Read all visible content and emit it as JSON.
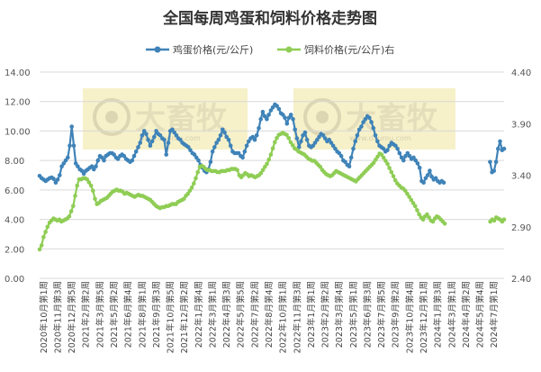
{
  "chart_data": {
    "type": "line",
    "title": "全国每周鸡蛋和饲料价格走势图",
    "left_axis": {
      "min": 0,
      "max": 14,
      "ticks": [
        "0.00",
        "2.00",
        "4.00",
        "6.00",
        "8.00",
        "10.00",
        "12.00",
        "14.00"
      ]
    },
    "right_axis": {
      "min": 2.4,
      "max": 4.4,
      "ticks": [
        "2.40",
        "2.90",
        "3.40",
        "3.90",
        "4.40"
      ]
    },
    "categories": [
      "2020年10月第1周",
      "2020年11月第3周",
      "2020年12月第5周",
      "2021年2月第2周",
      "2021年3月第5周",
      "2021年5月第2周",
      "2021年6月第4周",
      "2021年8月第1周",
      "2021年9月第3周",
      "2021年10月第5周",
      "2021年12月第2周",
      "2022年1月第4周",
      "2022年3月第1周",
      "2022年4月第3周",
      "2022年5月第5周",
      "2022年7月第2周",
      "2022年8月第4周",
      "2022年10月第1周",
      "2022年11月第3周",
      "2023年1月第1周",
      "2023年2月第2周",
      "2023年3月第4周",
      "2023年5月第1周",
      "2023年6月第3周",
      "2023年7月第5周",
      "2023年9月第2周",
      "2023年10月第4周",
      "2023年12月第1周",
      "2024年1月第3周",
      "2024年3月第1周",
      "2024年4月第2周",
      "2024年5月第4周",
      "2024年7月第1周"
    ],
    "series": [
      {
        "name": "鸡蛋价格(元/公斤)",
        "axis": "left",
        "color": "#3f83b8",
        "segments": [
          [
            6.95,
            6.8,
            6.7,
            6.6,
            6.7,
            6.8,
            6.85,
            6.75,
            6.5,
            6.7,
            7.0,
            7.6,
            7.8,
            8.0,
            8.2,
            9.0,
            10.3,
            9.0,
            7.8,
            7.6,
            7.4,
            7.3,
            7.1,
            7.3,
            7.4,
            7.5,
            7.6,
            7.4,
            7.6,
            8.0,
            8.3,
            8.2,
            8.0,
            8.3,
            8.4,
            8.5,
            8.5,
            8.4,
            8.2,
            8.1,
            8.3,
            8.4,
            8.3,
            8.1,
            8.0,
            7.9,
            8.0,
            8.3,
            8.6,
            8.9,
            9.2,
            9.7,
            10.0,
            9.8,
            9.4,
            9.0,
            9.3,
            9.6,
            10.0,
            9.8,
            9.7,
            9.5,
            9.4,
            8.4,
            9.2,
            10.0,
            10.1,
            9.9,
            9.7,
            9.5,
            9.4,
            9.2,
            9.1,
            9.0,
            8.9,
            8.7,
            8.5,
            8.4,
            8.2,
            8.0,
            7.7,
            7.5,
            7.3,
            7.2,
            7.4,
            7.9,
            8.6,
            8.9,
            9.2,
            9.4,
            9.7,
            10.1,
            9.9,
            9.6,
            9.4,
            9.0,
            8.6,
            8.5,
            8.5,
            8.5,
            8.3,
            8.2,
            8.6,
            9.0,
            9.3,
            9.5,
            9.6,
            9.4,
            9.7,
            10.2,
            10.8,
            11.3,
            11.0,
            10.8,
            11.1,
            11.4,
            11.6,
            11.8,
            11.7,
            11.5,
            11.2,
            11.1,
            10.9,
            10.5,
            10.9,
            11.1,
            10.8,
            10.1,
            9.5,
            8.9,
            9.3,
            9.7,
            9.9,
            9.4,
            9.0,
            8.9,
            9.0,
            9.2,
            9.4,
            9.6,
            9.8,
            9.7,
            9.5,
            9.3,
            9.4,
            9.2,
            9.0,
            8.8,
            8.6,
            8.5,
            8.3,
            8.0,
            7.9,
            7.7,
            7.6,
            8.2,
            8.8,
            9.3,
            9.7,
            10.1,
            10.3,
            10.6,
            10.8,
            11.0,
            10.9,
            10.6,
            10.2,
            9.7,
            9.3,
            9.0,
            8.9,
            8.8,
            8.6,
            8.7,
            9.0,
            9.2,
            9.1,
            9.0,
            8.8,
            8.5,
            8.2,
            8.0,
            8.3,
            8.5,
            8.3,
            8.1,
            8.2,
            8.0,
            7.8,
            7.5,
            6.6,
            6.5,
            6.8,
            7.0,
            7.3,
            6.9,
            6.7,
            6.8,
            6.6,
            6.5,
            6.6,
            6.5
          ],
          [
            7.9,
            7.2,
            7.3,
            7.9,
            8.8,
            9.3,
            8.7,
            8.8
          ]
        ],
        "gap_points": 22
      },
      {
        "name": "饲料价格(元/公斤)右",
        "axis": "right",
        "color": "#8fcd55",
        "segments": [
          [
            2.68,
            2.72,
            2.8,
            2.85,
            2.9,
            2.94,
            2.96,
            2.98,
            2.97,
            2.96,
            2.97,
            2.95,
            2.96,
            2.97,
            2.98,
            3.0,
            3.05,
            3.1,
            3.2,
            3.3,
            3.36,
            3.36,
            3.37,
            3.37,
            3.36,
            3.33,
            3.3,
            3.25,
            3.17,
            3.12,
            3.13,
            3.15,
            3.16,
            3.17,
            3.18,
            3.2,
            3.22,
            3.24,
            3.25,
            3.26,
            3.25,
            3.25,
            3.24,
            3.22,
            3.23,
            3.22,
            3.21,
            3.2,
            3.19,
            3.2,
            3.21,
            3.2,
            3.2,
            3.19,
            3.18,
            3.17,
            3.16,
            3.14,
            3.12,
            3.1,
            3.09,
            3.08,
            3.09,
            3.09,
            3.1,
            3.1,
            3.11,
            3.12,
            3.12,
            3.12,
            3.14,
            3.15,
            3.16,
            3.17,
            3.2,
            3.22,
            3.25,
            3.28,
            3.32,
            3.37,
            3.43,
            3.48,
            3.49,
            3.48,
            3.46,
            3.45,
            3.45,
            3.44,
            3.44,
            3.44,
            3.43,
            3.43,
            3.44,
            3.44,
            3.44,
            3.45,
            3.45,
            3.46,
            3.46,
            3.46,
            3.45,
            3.4,
            3.38,
            3.4,
            3.42,
            3.41,
            3.39,
            3.4,
            3.39,
            3.38,
            3.39,
            3.4,
            3.42,
            3.45,
            3.48,
            3.51,
            3.55,
            3.6,
            3.66,
            3.72,
            3.76,
            3.79,
            3.8,
            3.81,
            3.8,
            3.79,
            3.76,
            3.72,
            3.69,
            3.66,
            3.65,
            3.63,
            3.62,
            3.61,
            3.6,
            3.58,
            3.56,
            3.55,
            3.54,
            3.54,
            3.52,
            3.5,
            3.48,
            3.45,
            3.43,
            3.41,
            3.4,
            3.39,
            3.4,
            3.42,
            3.44,
            3.43,
            3.42,
            3.41,
            3.4,
            3.39,
            3.38,
            3.37,
            3.36,
            3.35,
            3.34,
            3.36,
            3.38,
            3.4,
            3.42,
            3.44,
            3.46,
            3.48,
            3.5,
            3.52,
            3.55,
            3.58,
            3.61,
            3.6,
            3.57,
            3.54,
            3.51,
            3.47,
            3.43,
            3.39,
            3.35,
            3.32,
            3.3,
            3.28,
            3.27,
            3.25,
            3.22,
            3.19,
            3.16,
            3.13,
            3.1,
            3.06,
            3.02,
            2.99,
            2.97,
            3.0,
            3.02,
            2.99,
            2.96,
            2.95,
            2.98,
            3.0,
            2.99,
            2.97,
            2.95,
            2.93
          ],
          [
            2.95,
            2.97,
            2.96,
            2.99,
            2.98,
            2.97,
            2.95,
            2.97
          ]
        ],
        "gap_points": 22
      }
    ],
    "legend_position": "top-center",
    "grid": "horizontal",
    "watermark": "大畜牧",
    "watermark_sub": "www.dxumu.com",
    "watermark_bg": "#f5eec0"
  }
}
